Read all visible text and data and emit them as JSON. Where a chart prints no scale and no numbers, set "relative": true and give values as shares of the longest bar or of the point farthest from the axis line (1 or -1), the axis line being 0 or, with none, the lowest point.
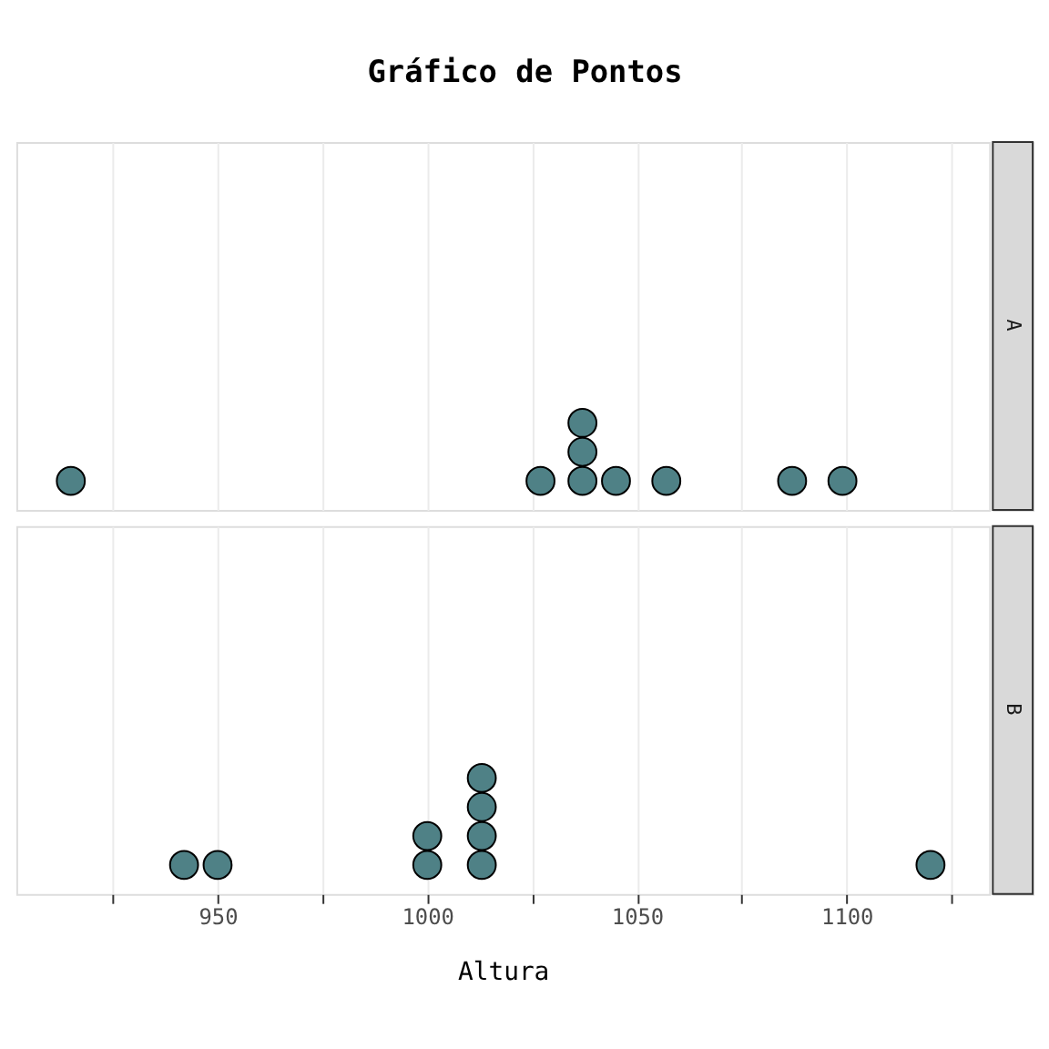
{
  "chart_data": [
    {
      "type": "scatter",
      "title": "Gráfico de Pontos",
      "y2label": "A",
      "relative": true,
      "xlim": [
        902,
        1134
      ],
      "xticks": [
        {
          "value": 925,
          "label": null
        },
        950,
        {
          "value": 975,
          "label": null
        },
        1000,
        {
          "value": 1025,
          "label": null
        },
        1050,
        {
          "value": 1075,
          "label": null
        },
        1100,
        {
          "value": 1125,
          "label": null
        }
      ],
      "grid": "x",
      "tick_labels": false,
      "marker": "circle",
      "series": [
        {
          "color": "#4f8186",
          "x": [
            915,
            1027,
            1037,
            1037,
            1037,
            1045,
            1057,
            1087,
            1099
          ],
          "values": [
            0.333,
            0.333,
            0.333,
            0.667,
            1,
            0.333,
            0.333,
            0.333,
            0.333
          ]
        }
      ]
    },
    {
      "type": "scatter",
      "xlabel": "Altura",
      "y2label": "B",
      "relative": true,
      "xlim": [
        902,
        1134
      ],
      "xticks": [
        {
          "value": 925,
          "label": null
        },
        950,
        {
          "value": 975,
          "label": null
        },
        1000,
        {
          "value": 1025,
          "label": null
        },
        1050,
        {
          "value": 1075,
          "label": null
        },
        1100,
        {
          "value": 1125,
          "label": null
        }
      ],
      "grid": "x",
      "tick_labels": "x",
      "marker": "circle",
      "series": [
        {
          "color": "#4f8186",
          "x": [
            942,
            950,
            1000,
            1000,
            1013,
            1013,
            1013,
            1013,
            1120
          ],
          "values": [
            0.25,
            0.25,
            0.25,
            0.5,
            0.25,
            0.5,
            0.75,
            1,
            0.25
          ]
        }
      ]
    }
  ]
}
